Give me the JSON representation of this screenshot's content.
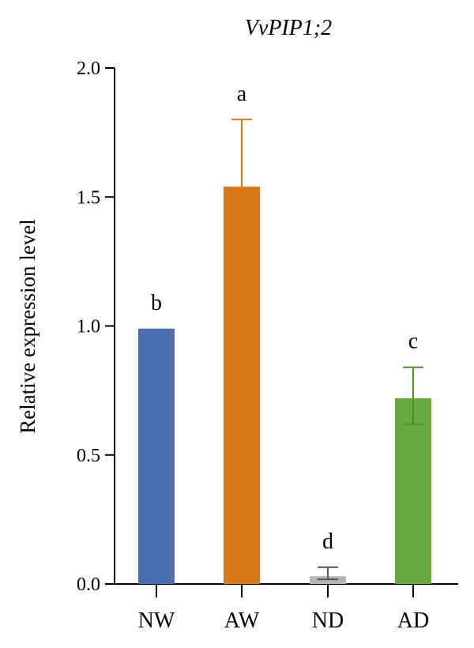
{
  "chart_data": {
    "type": "bar",
    "title": "VvPIP1;2",
    "xlabel": "",
    "ylabel": "Relative expression level",
    "ylim": [
      0,
      2.0
    ],
    "yticks": [
      "0.0",
      "0.5",
      "1.0",
      "1.5",
      "2.0"
    ],
    "grid": false,
    "legend": "none",
    "categories": [
      "NW",
      "AW",
      "ND",
      "AD"
    ],
    "values": [
      0.99,
      1.54,
      0.03,
      0.72
    ],
    "error_upper": [
      0.0,
      1.8,
      0.065,
      0.84
    ],
    "error_lower": [
      0.99,
      1.54,
      0.018,
      0.62
    ],
    "significance": [
      "b",
      "a",
      "d",
      "c"
    ],
    "colors": [
      "#4a6fb1",
      "#d77a1c",
      "#b5b5b5",
      "#69a93e"
    ],
    "error_colors": [
      "#4a6fb1",
      "#d77a1c",
      "#555555",
      "#4f8f2e"
    ]
  }
}
